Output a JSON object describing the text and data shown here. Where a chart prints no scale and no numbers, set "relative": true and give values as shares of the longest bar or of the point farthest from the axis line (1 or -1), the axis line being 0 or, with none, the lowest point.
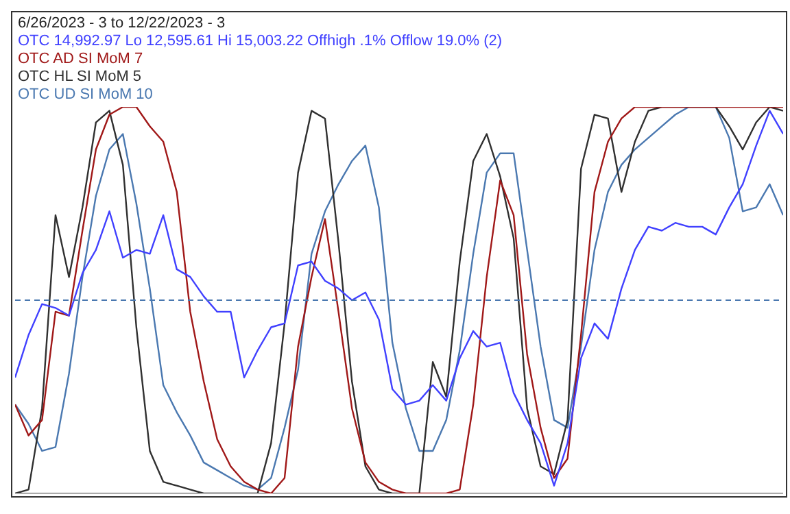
{
  "chart_data": {
    "type": "line",
    "relative": true,
    "title": "6/26/2023 - 3 to 12/22/2023 - 3",
    "tick_labels": false,
    "marker": "none",
    "categories": [
      null,
      null,
      null,
      null,
      null,
      null,
      null,
      null,
      null,
      null,
      null,
      null,
      null,
      null,
      null,
      null,
      null,
      null,
      null,
      null,
      null,
      null,
      null,
      null,
      null,
      null,
      null,
      null,
      null,
      null,
      null,
      null,
      null,
      null,
      null,
      null,
      null,
      null,
      null,
      null,
      null,
      null,
      null,
      null,
      null,
      null,
      null,
      null,
      null,
      null,
      null,
      null,
      null,
      null,
      null,
      null,
      null,
      null
    ],
    "ref_lines": [
      {
        "axis": "y",
        "value": 0.5,
        "color": "#4a78b0",
        "line_style": "dashed"
      }
    ],
    "series": [
      {
        "name": "OTC 14,992.97 Lo 12,595.61 Hi 15,003.22  Offhigh .1%  Offlow 19.0% (2)",
        "color": "#4040ff",
        "values": [
          0.3,
          0.41,
          0.49,
          0.48,
          0.46,
          0.57,
          0.63,
          0.73,
          0.61,
          0.63,
          0.62,
          0.72,
          0.58,
          0.56,
          0.51,
          0.47,
          0.47,
          0.3,
          0.37,
          0.43,
          0.44,
          0.59,
          0.6,
          0.55,
          0.53,
          0.5,
          0.52,
          0.45,
          0.27,
          0.23,
          0.24,
          0.28,
          0.24,
          0.35,
          0.42,
          0.38,
          0.39,
          0.26,
          0.19,
          0.13,
          0.02,
          0.13,
          0.35,
          0.44,
          0.4,
          0.53,
          0.63,
          0.69,
          0.68,
          0.7,
          0.69,
          0.69,
          0.67,
          0.74,
          0.8,
          0.9,
          0.99,
          0.93
        ]
      },
      {
        "name": "OTC AD SI MoM 7",
        "color": "#a01818",
        "values": [
          0.23,
          0.15,
          0.19,
          0.47,
          0.46,
          0.68,
          0.89,
          0.98,
          1.0,
          1.0,
          0.95,
          0.91,
          0.78,
          0.47,
          0.29,
          0.14,
          0.07,
          0.03,
          0.01,
          0,
          0.04,
          0.38,
          0.56,
          0.71,
          0.47,
          0.22,
          0.08,
          0.03,
          0.01,
          0,
          0,
          0,
          0,
          0.01,
          0.23,
          0.56,
          0.81,
          0.72,
          0.36,
          0.17,
          0.04,
          0.09,
          0.41,
          0.78,
          0.91,
          0.97,
          1.0,
          1.0,
          1.0,
          1.0,
          1.0,
          1.0,
          1.0,
          1.0,
          1.0,
          1.0,
          1.0,
          1.0
        ]
      },
      {
        "name": "OTC HL SI MoM 5",
        "color": "#303030",
        "values": [
          0,
          0.01,
          0.22,
          0.72,
          0.56,
          0.74,
          0.96,
          0.99,
          0.85,
          0.43,
          0.11,
          0.03,
          0.02,
          0.01,
          0,
          0,
          0,
          0,
          0,
          0.13,
          0.44,
          0.83,
          0.99,
          0.97,
          0.65,
          0.29,
          0.07,
          0.01,
          0,
          0,
          0,
          0.34,
          0.25,
          0.6,
          0.86,
          0.93,
          0.82,
          0.66,
          0.22,
          0.07,
          0.05,
          0.19,
          0.84,
          0.98,
          0.97,
          0.78,
          0.91,
          0.99,
          1.0,
          1.0,
          1.0,
          1.0,
          1.0,
          0.95,
          0.89,
          0.96,
          1.0,
          0.99
        ]
      },
      {
        "name": "OTC UD SI MoM 10",
        "color": "#4a78b0",
        "values": [
          0.23,
          0.18,
          0.11,
          0.12,
          0.31,
          0.56,
          0.77,
          0.89,
          0.93,
          0.75,
          0.53,
          0.28,
          0.21,
          0.15,
          0.08,
          0.06,
          0.04,
          0.02,
          0.01,
          0.04,
          0.17,
          0.32,
          0.62,
          0.73,
          0.8,
          0.86,
          0.9,
          0.74,
          0.39,
          0.22,
          0.11,
          0.11,
          0.19,
          0.37,
          0.62,
          0.83,
          0.88,
          0.88,
          0.63,
          0.38,
          0.19,
          0.17,
          0.38,
          0.63,
          0.78,
          0.85,
          0.89,
          0.92,
          0.95,
          0.98,
          1.0,
          1.0,
          1.0,
          0.92,
          0.73,
          0.74,
          0.8,
          0.72
        ]
      }
    ]
  }
}
